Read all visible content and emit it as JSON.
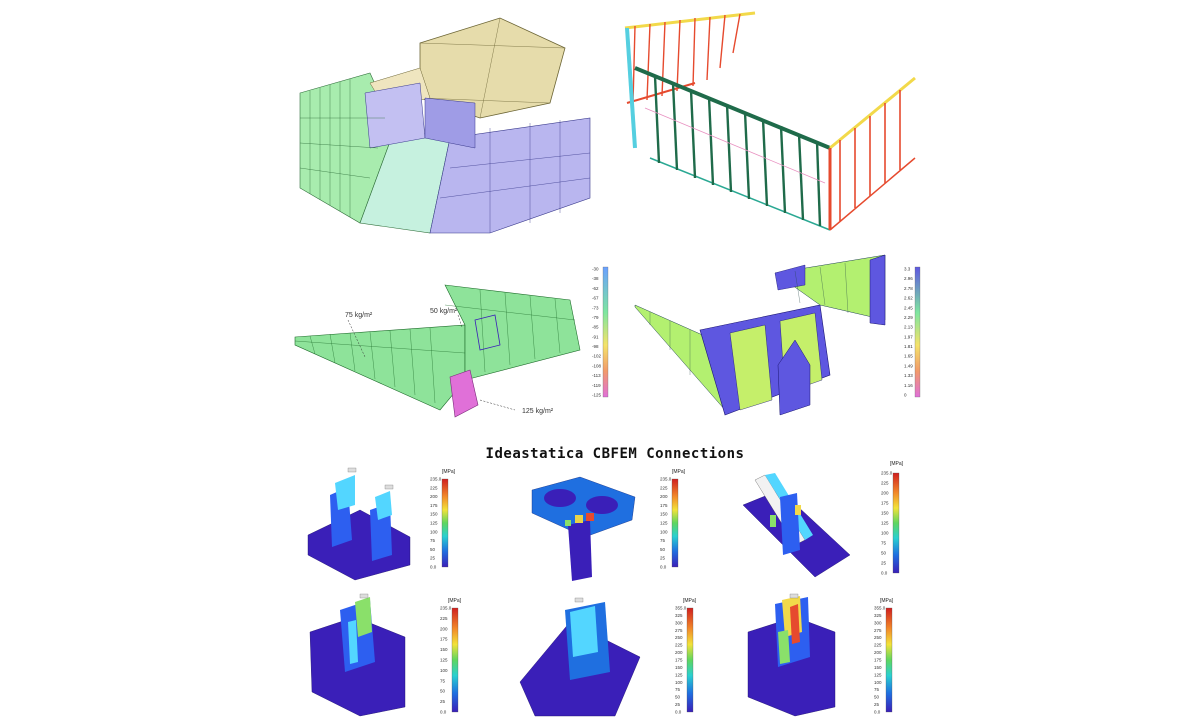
{
  "section_title": "Ideastatica CBFEM Connections",
  "load_labels": [
    "75 kg/m²",
    "50 kg/m²",
    "125 kg/m²"
  ],
  "unit_label": "[MPa]",
  "legend_mid": {
    "left": [
      "-30",
      "-38",
      "-62",
      "-67",
      "-73",
      "-79",
      "-85",
      "-91",
      "-98",
      "-102",
      "-108",
      "-113",
      "-119",
      "-125"
    ],
    "right": [
      "3.3",
      "2.96",
      "2.78",
      "2.62",
      "2.45",
      "2.29",
      "2.13",
      "1.97",
      "1.81",
      "1.65",
      "1.49",
      "1.33",
      "1.16",
      "0"
    ]
  },
  "connection_legends": [
    [
      "235.0",
      "225",
      "200",
      "175",
      "150",
      "125",
      "100",
      "75",
      "50",
      "25",
      "0.0"
    ],
    [
      "235.0",
      "225",
      "200",
      "175",
      "150",
      "125",
      "100",
      "75",
      "50",
      "25",
      "0.0"
    ],
    [
      "235.0",
      "225",
      "200",
      "175",
      "150",
      "125",
      "100",
      "75",
      "50",
      "25",
      "0.0"
    ],
    [
      "235.0",
      "225",
      "200",
      "175",
      "150",
      "125",
      "100",
      "75",
      "50",
      "25",
      "0.0"
    ],
    [
      "355.0",
      "325",
      "300",
      "275",
      "250",
      "225",
      "200",
      "175",
      "150",
      "125",
      "100",
      "75",
      "50",
      "25",
      "0.0"
    ],
    [
      "355.0",
      "325",
      "300",
      "275",
      "250",
      "225",
      "200",
      "175",
      "150",
      "125",
      "100",
      "75",
      "50",
      "25",
      "0.0"
    ]
  ],
  "colors": {
    "facade_green": "#8ee39a",
    "glass_cyan": "#b9f0e8",
    "roof_tan": "#e6dcab",
    "core_lavender": "#b9b6ef",
    "stress_blue": "#3a1fb8",
    "stress_magenta": "#e070d8",
    "frame_red": "#e64a2e",
    "frame_yellow": "#f2d94a",
    "frame_teal": "#2aa893",
    "frame_darkgreen": "#1f6b4a"
  }
}
